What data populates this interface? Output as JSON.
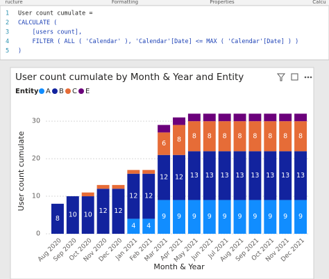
{
  "ribbon": {
    "tabs": [
      "ructure",
      "Formatting",
      "Properties",
      "Calcu"
    ]
  },
  "code": {
    "lines": [
      {
        "number": 1,
        "text": "User count cumulate ="
      },
      {
        "number": 2,
        "text": "CALCULATE ("
      },
      {
        "number": 3,
        "text": "    [users count],"
      },
      {
        "number": 4,
        "text": "    FILTER ( ALL ( 'Calendar' ), 'Calendar'[Date] <= MAX ( 'Calendar'[Date] ) )"
      },
      {
        "number": 5,
        "text": ")"
      }
    ]
  },
  "chart_data": {
    "type": "stacked_bar",
    "title": "User count cumulate by Month & Year and Entity",
    "legend_title": "Entity",
    "x_label": "Month & Year",
    "y_label": "User count cumulate",
    "categories": [
      "Aug 2020",
      "Sep 2020",
      "Oct 2020",
      "Nov 2020",
      "Dec 2020",
      "Jan 2021",
      "Feb 2021",
      "Mar 2021",
      "Apr 2021",
      "May 2021",
      "Jun 2021",
      "Jul 2021",
      "Aug 2021",
      "Sep 2021",
      "Oct 2021",
      "Nov 2021",
      "Dec 2021"
    ],
    "series": [
      {
        "name": "A",
        "color": "#118dff",
        "values": [
          0,
          0,
          0,
          0,
          0,
          4,
          4,
          9,
          9,
          9,
          9,
          9,
          9,
          9,
          9,
          9,
          9
        ]
      },
      {
        "name": "B",
        "color": "#12239e",
        "values": [
          8,
          10,
          10,
          12,
          12,
          12,
          12,
          12,
          12,
          13,
          13,
          13,
          13,
          13,
          13,
          13,
          13
        ]
      },
      {
        "name": "C",
        "color": "#e66c37",
        "values": [
          0,
          0,
          1,
          1,
          1,
          1,
          1,
          6,
          8,
          8,
          8,
          8,
          8,
          8,
          8,
          8,
          8
        ]
      },
      {
        "name": "E",
        "color": "#6b007b",
        "values": [
          0,
          0,
          0,
          0,
          0,
          0,
          0,
          2,
          2,
          2,
          2,
          2,
          2,
          2,
          2,
          2,
          2
        ]
      }
    ],
    "ylim": [
      0,
      33
    ],
    "yticks": [
      0,
      10,
      20,
      30
    ],
    "grid": true
  }
}
